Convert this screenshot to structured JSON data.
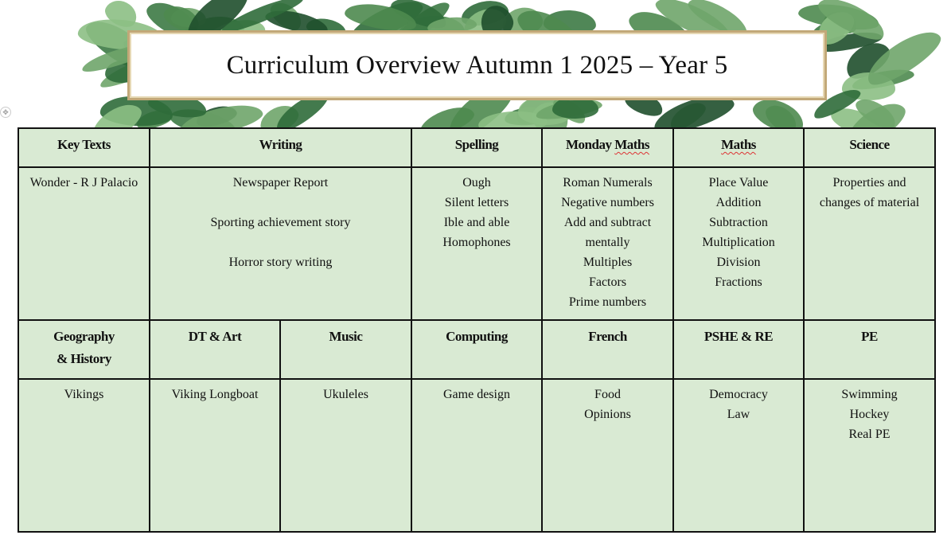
{
  "title": "Curriculum Overview Autumn 1 2025 – Year 5",
  "table": {
    "row1_headers": [
      {
        "label": "Key Texts",
        "span": 1
      },
      {
        "label": "Writing",
        "span": 2
      },
      {
        "label": "Spelling",
        "span": 1
      },
      {
        "label": "Monday Maths",
        "span": 1,
        "spellcheck": true
      },
      {
        "label": "Maths",
        "span": 1,
        "spellcheck": true
      },
      {
        "label": "Science",
        "span": 1
      }
    ],
    "row1_content": [
      {
        "items": [
          "Wonder - R J Palacio"
        ],
        "span": 1
      },
      {
        "items": [
          "Newspaper Report",
          "Sporting achievement story",
          "Horror story writing"
        ],
        "span": 2,
        "spaced": true
      },
      {
        "items": [
          "Ough",
          "Silent letters",
          "Ible and able",
          "Homophones"
        ],
        "span": 1
      },
      {
        "items": [
          "Roman Numerals",
          "Negative numbers",
          "Add and subtract mentally",
          "Multiples",
          "Factors",
          "Prime numbers"
        ],
        "span": 1
      },
      {
        "items": [
          "Place Value",
          "Addition",
          "Subtraction",
          "Multiplication",
          "Division",
          "Fractions"
        ],
        "span": 1
      },
      {
        "items": [
          "Properties and changes of material"
        ],
        "span": 1
      }
    ],
    "row2_headers": [
      {
        "label": "Geography & History",
        "span": 1
      },
      {
        "label": "DT & Art",
        "span": 1
      },
      {
        "label": "Music",
        "span": 1
      },
      {
        "label": "Computing",
        "span": 1
      },
      {
        "label": "French",
        "span": 1
      },
      {
        "label": "PSHE & RE",
        "span": 1
      },
      {
        "label": "PE",
        "span": 1
      }
    ],
    "row2_content": [
      {
        "items": [
          "Vikings"
        ],
        "span": 1
      },
      {
        "items": [
          "Viking Longboat"
        ],
        "span": 1
      },
      {
        "items": [
          "Ukuleles"
        ],
        "span": 1
      },
      {
        "items": [
          "Game design"
        ],
        "span": 1
      },
      {
        "items": [
          "Food",
          "Opinions"
        ],
        "span": 1
      },
      {
        "items": [
          "Democracy",
          "Law"
        ],
        "span": 1
      },
      {
        "items": [
          "Swimming",
          "Hockey",
          "Real PE"
        ],
        "span": 1
      }
    ]
  },
  "colors": {
    "cell_bg": "#d9ead3",
    "border": "#111111",
    "frame": "#c2a878"
  }
}
